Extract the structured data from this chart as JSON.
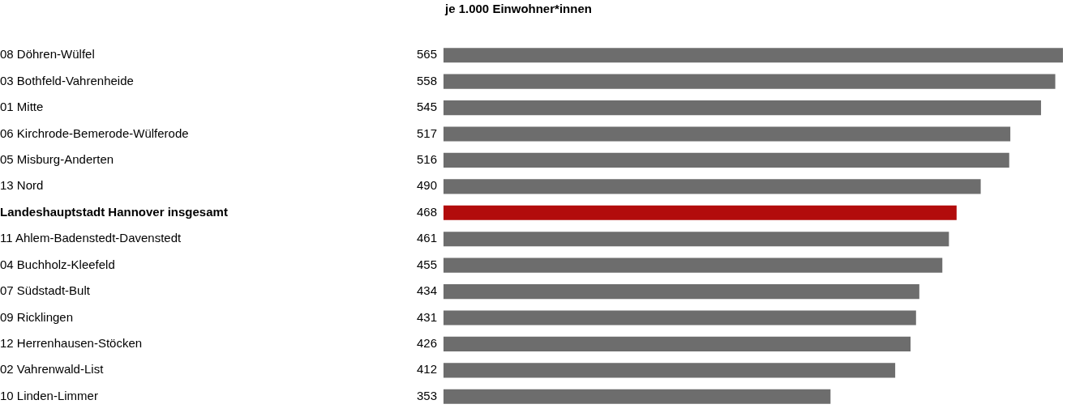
{
  "chart_data": {
    "type": "bar",
    "orientation": "horizontal",
    "title": "je 1.000 Einwohner*innen",
    "categories": [
      "08 Döhren-Wülfel",
      "03 Bothfeld-Vahrenheide",
      "01 Mitte",
      "06 Kirchrode-Bemerode-Wülferode",
      "05 Misburg-Anderten",
      "13 Nord",
      "Landeshauptstadt Hannover insgesamt",
      "11 Ahlem-Badenstedt-Davenstedt",
      "04 Buchholz-Kleefeld",
      "07 Südstadt-Bult",
      "09 Ricklingen",
      "12 Herrenhausen-Stöcken",
      "02 Vahrenwald-List",
      "10 Linden-Limmer"
    ],
    "values": [
      565,
      558,
      545,
      517,
      516,
      490,
      468,
      461,
      455,
      434,
      431,
      426,
      412,
      353
    ],
    "colors": [
      "#6d6d6d",
      "#6d6d6d",
      "#6d6d6d",
      "#6d6d6d",
      "#6d6d6d",
      "#6d6d6d",
      "#b20c0c",
      "#6d6d6d",
      "#6d6d6d",
      "#6d6d6d",
      "#6d6d6d",
      "#6d6d6d",
      "#6d6d6d",
      "#6d6d6d"
    ],
    "data_labels": true,
    "grid": false,
    "legend": false
  }
}
